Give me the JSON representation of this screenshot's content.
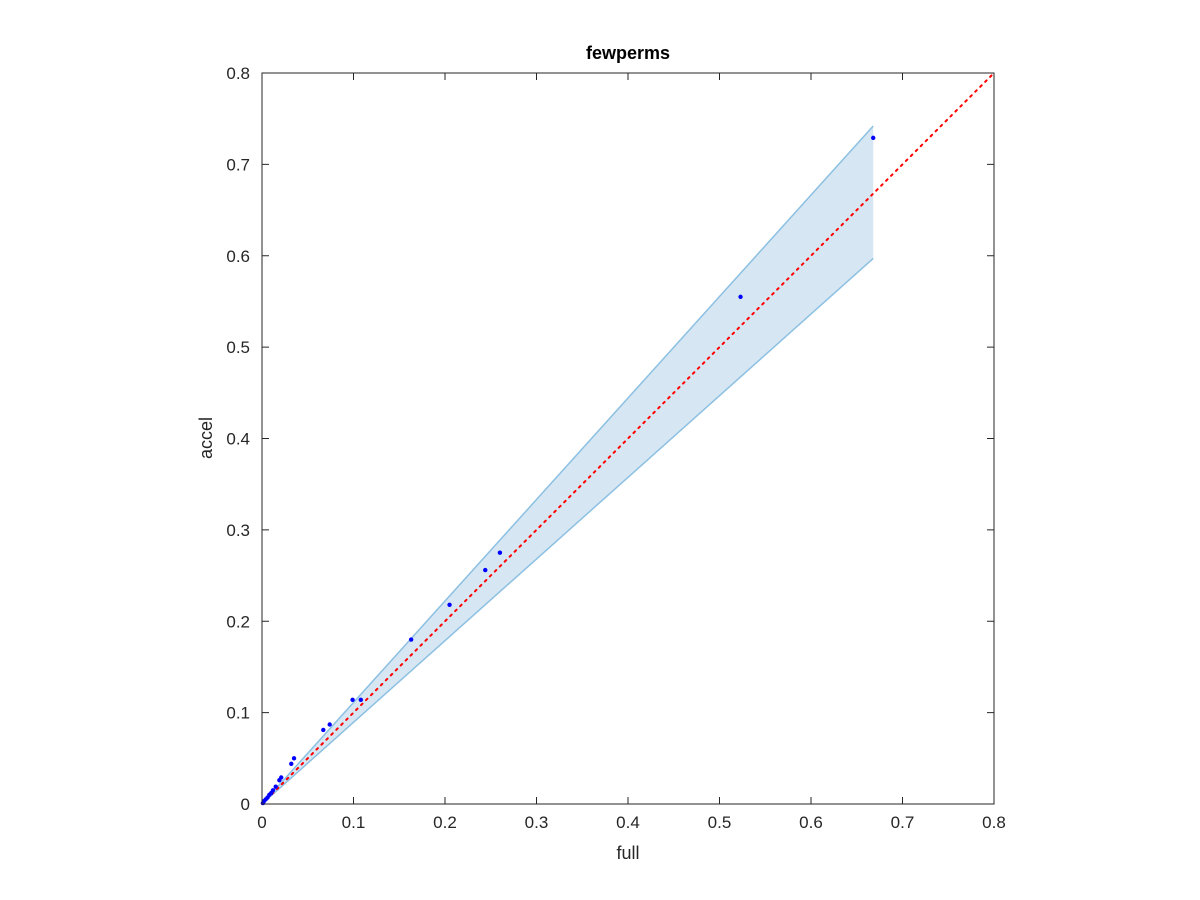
{
  "chart_data": {
    "type": "scatter",
    "title": "fewperms",
    "xlabel": "full",
    "ylabel": "accel",
    "xlim": [
      0,
      0.8
    ],
    "ylim": [
      0,
      0.8
    ],
    "xticks": [
      "0",
      "0.1",
      "0.2",
      "0.3",
      "0.4",
      "0.5",
      "0.6",
      "0.7",
      "0.8"
    ],
    "yticks": [
      "0",
      "0.1",
      "0.2",
      "0.3",
      "0.4",
      "0.5",
      "0.6",
      "0.7",
      "0.8"
    ],
    "grid": false,
    "legend": "none",
    "series": [
      {
        "kind": "points",
        "color": "#0000ff",
        "points": [
          [
            0.001,
            0.001
          ],
          [
            0.002,
            0.003
          ],
          [
            0.004,
            0.005
          ],
          [
            0.006,
            0.007
          ],
          [
            0.008,
            0.01
          ],
          [
            0.01,
            0.012
          ],
          [
            0.012,
            0.015
          ],
          [
            0.015,
            0.019
          ],
          [
            0.019,
            0.026
          ],
          [
            0.021,
            0.029
          ],
          [
            0.032,
            0.044
          ],
          [
            0.035,
            0.05
          ],
          [
            0.067,
            0.081
          ],
          [
            0.074,
            0.087
          ],
          [
            0.099,
            0.114
          ],
          [
            0.108,
            0.114
          ],
          [
            0.163,
            0.18
          ],
          [
            0.205,
            0.218
          ],
          [
            0.244,
            0.256
          ],
          [
            0.26,
            0.275
          ],
          [
            0.523,
            0.555
          ],
          [
            0.668,
            0.729
          ]
        ]
      },
      {
        "kind": "band",
        "fill": "#d6e6f3",
        "edge": "#8cc0e2",
        "x": [
          0,
          0.668
        ],
        "upper": [
          0,
          0.742
        ],
        "lower": [
          0,
          0.597
        ]
      },
      {
        "kind": "reference-line",
        "color": "#ff0000",
        "style": "dotted",
        "x": [
          0,
          0.8
        ],
        "y": [
          0,
          0.8
        ]
      }
    ]
  }
}
